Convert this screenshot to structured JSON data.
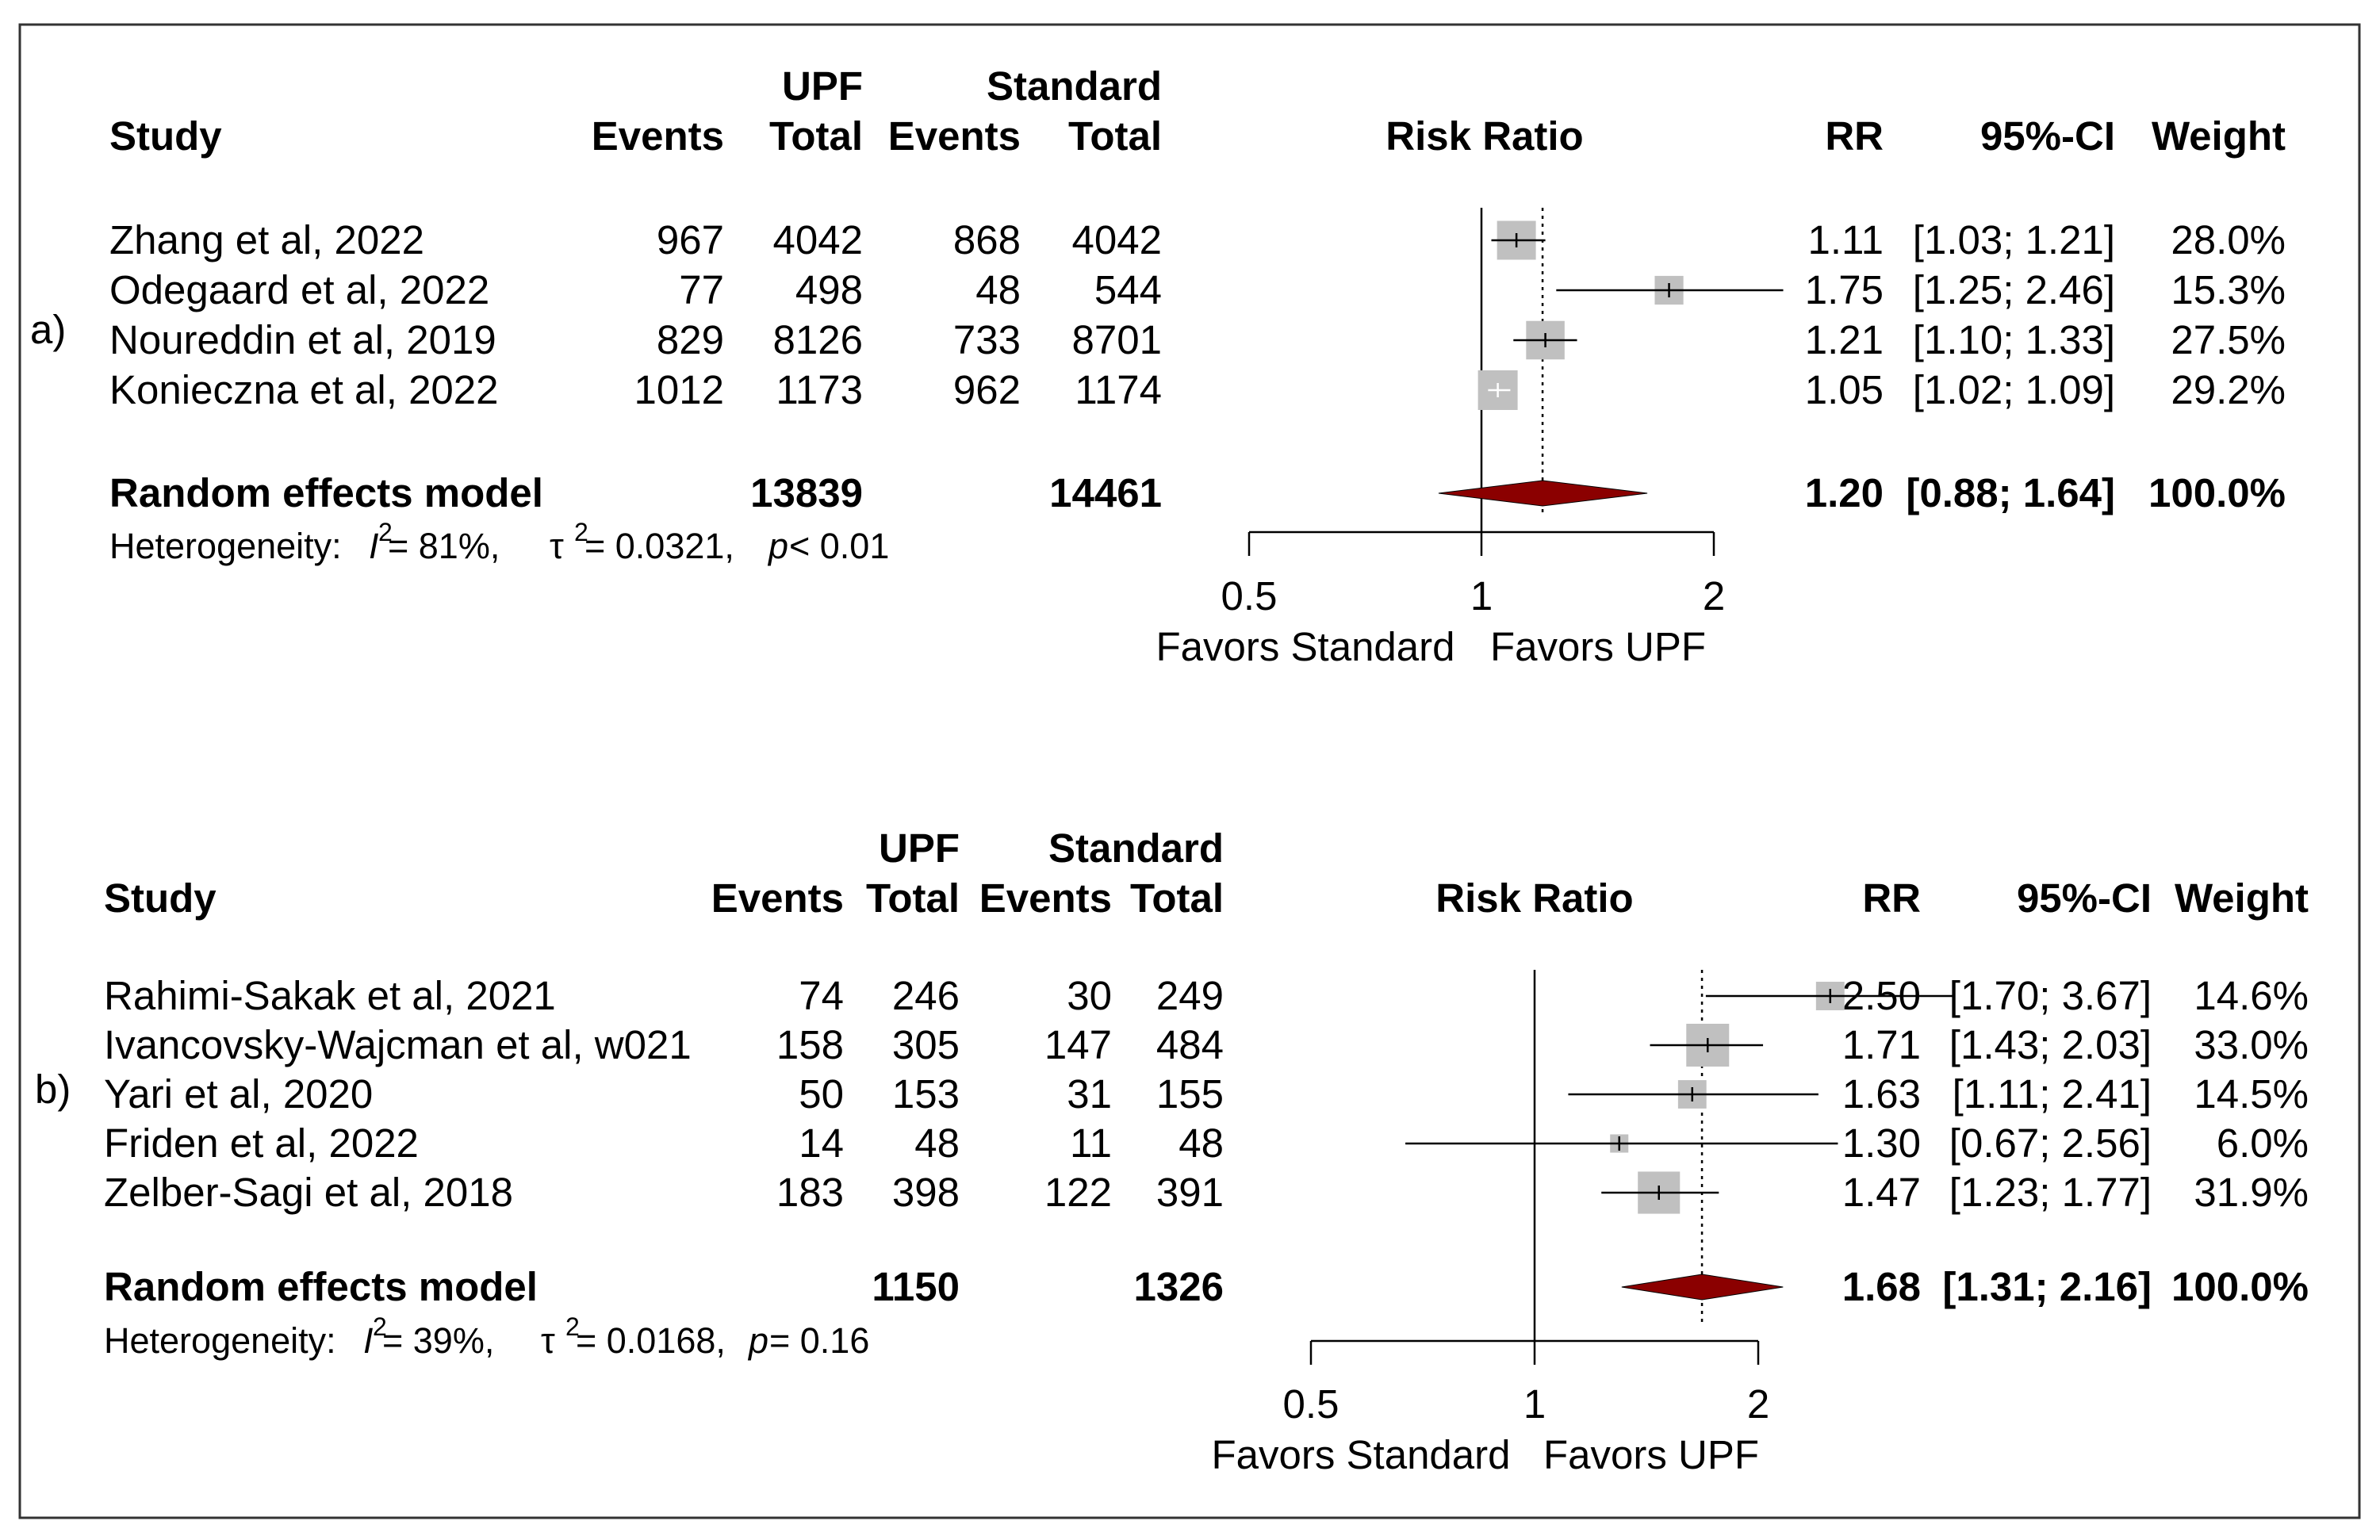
{
  "colors": {
    "study_box": "#c0c0c0",
    "summary_diamond": "#8b0000",
    "study_ci_light": "#ffffff",
    "line": "#000000"
  },
  "chart_data": [
    {
      "type": "forest",
      "panel_label": "a)",
      "group_headers": {
        "upf": "UPF",
        "standard": "Standard"
      },
      "columns": {
        "study": "Study",
        "events": "Events",
        "total": "Total",
        "events2": "Events",
        "total2": "Total",
        "plot": "Risk Ratio",
        "rr": "RR",
        "ci": "95%-CI",
        "weight": "Weight"
      },
      "studies": [
        {
          "study": "Zhang et al, 2022",
          "upf_events": "967",
          "upf_total": "4042",
          "std_events": "868",
          "std_total": "4042",
          "rr": 1.11,
          "lower": 1.03,
          "upper": 1.21,
          "rr_text": "1.11",
          "ci_text": "[1.03; 1.21]",
          "weight": 28.0,
          "weight_text": "28.0%"
        },
        {
          "study": "Odegaard et al, 2022",
          "upf_events": "77",
          "upf_total": "498",
          "std_events": "48",
          "std_total": "544",
          "rr": 1.75,
          "lower": 1.25,
          "upper": 2.46,
          "rr_text": "1.75",
          "ci_text": "[1.25; 2.46]",
          "weight": 15.3,
          "weight_text": "15.3%"
        },
        {
          "study": "Noureddin et al, 2019",
          "upf_events": "829",
          "upf_total": "8126",
          "std_events": "733",
          "std_total": "8701",
          "rr": 1.21,
          "lower": 1.1,
          "upper": 1.33,
          "rr_text": "1.21",
          "ci_text": "[1.10; 1.33]",
          "weight": 27.5,
          "weight_text": "27.5%"
        },
        {
          "study": "Konieczna et al, 2022",
          "upf_events": "1012",
          "upf_total": "1173",
          "std_events": "962",
          "std_total": "1174",
          "rr": 1.05,
          "lower": 1.02,
          "upper": 1.09,
          "rr_text": "1.05",
          "ci_text": "[1.02; 1.09]",
          "weight": 29.2,
          "weight_text": "29.2%"
        }
      ],
      "summary": {
        "label": "Random effects model",
        "upf_total": "13839",
        "std_total": "14461",
        "rr": 1.2,
        "lower": 0.88,
        "upper": 1.64,
        "rr_text": "1.20",
        "ci_text": "[0.88; 1.64]",
        "weight_text": "100.0%"
      },
      "heterogeneity": {
        "prefix": "Heterogeneity: ",
        "i2_symbol": "I",
        "sup": "2",
        "i2_value": " = 81%, ",
        "tau_symbol": "τ",
        "tau_value": " = 0.0321, ",
        "p_symbol": "p",
        "p_value": " < 0.01"
      },
      "axis": {
        "scale": "log",
        "xlim": [
          0.5,
          2
        ],
        "ticks": [
          0.5,
          1,
          2
        ],
        "tick_labels": [
          "0.5",
          "1",
          "2"
        ],
        "reference_line": 1,
        "left_label": "Favors Standard",
        "right_label": "Favors UPF"
      }
    },
    {
      "type": "forest",
      "panel_label": "b)",
      "group_headers": {
        "upf": "UPF",
        "standard": "Standard"
      },
      "columns": {
        "study": "Study",
        "events": "Events",
        "total": "Total",
        "events2": "Events",
        "total2": "Total",
        "plot": "Risk Ratio",
        "rr": "RR",
        "ci": "95%-CI",
        "weight": "Weight"
      },
      "studies": [
        {
          "study": "Rahimi-Sakak et al, 2021",
          "upf_events": "74",
          "upf_total": "246",
          "std_events": "30",
          "std_total": "249",
          "rr": 2.5,
          "lower": 1.7,
          "upper": 3.67,
          "rr_text": "2.50",
          "ci_text": "[1.70; 3.67]",
          "weight": 14.6,
          "weight_text": "14.6%"
        },
        {
          "study": "Ivancovsky-Wajcman et al, w021",
          "upf_events": "158",
          "upf_total": "305",
          "std_events": "147",
          "std_total": "484",
          "rr": 1.71,
          "lower": 1.43,
          "upper": 2.03,
          "rr_text": "1.71",
          "ci_text": "[1.43; 2.03]",
          "weight": 33.0,
          "weight_text": "33.0%"
        },
        {
          "study": "Yari et al, 2020",
          "upf_events": "50",
          "upf_total": "153",
          "std_events": "31",
          "std_total": "155",
          "rr": 1.63,
          "lower": 1.11,
          "upper": 2.41,
          "rr_text": "1.63",
          "ci_text": "[1.11; 2.41]",
          "weight": 14.5,
          "weight_text": "14.5%"
        },
        {
          "study": "Friden et al, 2022",
          "upf_events": "14",
          "upf_total": "48",
          "std_events": "11",
          "std_total": "48",
          "rr": 1.3,
          "lower": 0.67,
          "upper": 2.56,
          "rr_text": "1.30",
          "ci_text": "[0.67; 2.56]",
          "weight": 6.0,
          "weight_text": "6.0%"
        },
        {
          "study": "Zelber-Sagi et al, 2018",
          "upf_events": "183",
          "upf_total": "398",
          "std_events": "122",
          "std_total": "391",
          "rr": 1.47,
          "lower": 1.23,
          "upper": 1.77,
          "rr_text": "1.47",
          "ci_text": "[1.23; 1.77]",
          "weight": 31.9,
          "weight_text": "31.9%"
        }
      ],
      "summary": {
        "label": "Random effects model",
        "upf_total": "1150",
        "std_total": "1326",
        "rr": 1.68,
        "lower": 1.31,
        "upper": 2.16,
        "rr_text": "1.68",
        "ci_text": "[1.31; 2.16]",
        "weight_text": "100.0%"
      },
      "heterogeneity": {
        "prefix": "Heterogeneity: ",
        "i2_symbol": "I",
        "sup": "2",
        "i2_value": " = 39%, ",
        "tau_symbol": "τ",
        "tau_value": " = 0.0168, ",
        "p_symbol": "p",
        "p_value": " = 0.16"
      },
      "axis": {
        "scale": "log",
        "xlim": [
          0.5,
          2
        ],
        "ticks": [
          0.5,
          1,
          2
        ],
        "tick_labels": [
          "0.5",
          "1",
          "2"
        ],
        "reference_line": 1,
        "left_label": "Favors Standard",
        "right_label": "Favors UPF"
      }
    }
  ]
}
